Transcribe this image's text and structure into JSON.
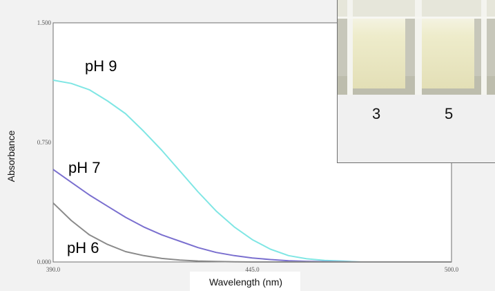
{
  "chart_data": {
    "type": "line",
    "xlabel": "Wavelength (nm)",
    "ylabel": "Absorbance",
    "xlim": [
      390,
      500
    ],
    "ylim": [
      0,
      1.5
    ],
    "x_ticks": [
      "390.0",
      "445.0",
      "500.0"
    ],
    "y_ticks": [
      "0.000",
      "0.750",
      "1.500"
    ],
    "grid": false,
    "series": [
      {
        "name": "pH 9",
        "color": "#7fe6e4",
        "x": [
          390,
          395,
          400,
          405,
          410,
          415,
          420,
          425,
          430,
          435,
          440,
          445,
          450,
          455,
          460,
          465,
          470,
          475,
          480,
          485,
          490,
          495,
          500
        ],
        "y": [
          1.14,
          1.12,
          1.08,
          1.01,
          0.93,
          0.82,
          0.7,
          0.57,
          0.44,
          0.32,
          0.22,
          0.14,
          0.08,
          0.04,
          0.02,
          0.01,
          0.005,
          0,
          0,
          0,
          0,
          0,
          0
        ]
      },
      {
        "name": "pH 7",
        "color": "#7a6fcf",
        "x": [
          390,
          395,
          400,
          405,
          410,
          415,
          420,
          425,
          430,
          435,
          440,
          445,
          450,
          455,
          460,
          465,
          470,
          475,
          480,
          485,
          490,
          495,
          500
        ],
        "y": [
          0.58,
          0.5,
          0.42,
          0.35,
          0.28,
          0.22,
          0.17,
          0.13,
          0.09,
          0.06,
          0.04,
          0.025,
          0.015,
          0.008,
          0.004,
          0.002,
          0.001,
          0,
          0,
          0,
          0,
          0,
          0
        ]
      },
      {
        "name": "pH 6",
        "color": "#8a8a8a",
        "x": [
          390,
          395,
          400,
          405,
          410,
          415,
          420,
          425,
          430,
          435,
          440,
          445,
          450,
          455,
          460,
          465,
          470,
          475,
          480,
          485,
          490,
          495,
          500
        ],
        "y": [
          0.37,
          0.26,
          0.17,
          0.11,
          0.065,
          0.04,
          0.022,
          0.012,
          0.006,
          0.003,
          0.001,
          0,
          0,
          0,
          0,
          0,
          0,
          0,
          0,
          0,
          0,
          0,
          0
        ]
      }
    ],
    "curve_labels": [
      {
        "text": "pH 9",
        "color": "#22c4dc"
      },
      {
        "text": "pH 7",
        "color": "#3a5fd9"
      },
      {
        "text": "pH 6",
        "color": "#111111"
      }
    ]
  },
  "inset": {
    "labels": [
      "3",
      "5"
    ]
  }
}
